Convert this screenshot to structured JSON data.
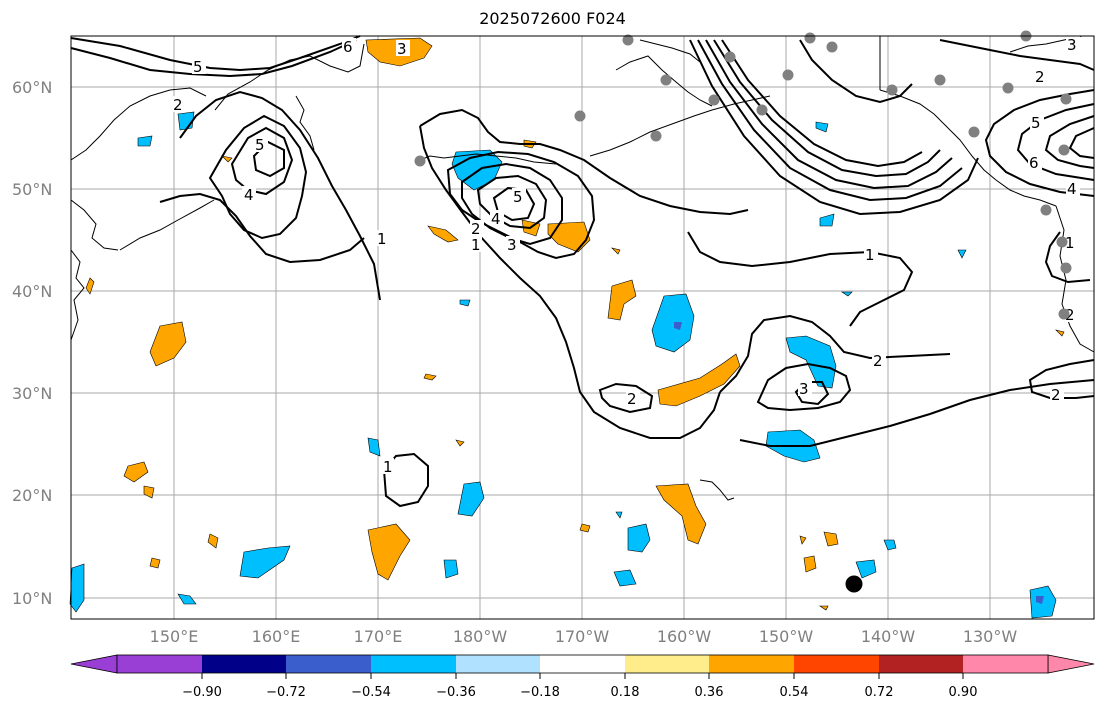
{
  "title": "2025072600 F024",
  "lat_labels": [
    "60°N",
    "50°N",
    "40°N",
    "30°N",
    "20°N",
    "10°N"
  ],
  "lon_labels": [
    "150°E",
    "160°E",
    "170°E",
    "180°W",
    "170°W",
    "160°W",
    "150°W",
    "140°W",
    "130°W"
  ],
  "colorbar": {
    "ticks": [
      "−0.90",
      "−0.72",
      "−0.54",
      "−0.36",
      "−0.18",
      "0.18",
      "0.36",
      "0.54",
      "0.72",
      "0.90"
    ],
    "colors": [
      "#9a3fd6",
      "#000088",
      "#3a5fcd",
      "#00bfff",
      "#b0e2ff",
      "#ffffff",
      "#ffec8b",
      "#ffa500",
      "#ff4500",
      "#b22222",
      "#ff88aa"
    ]
  },
  "contour_labels": [
    "5",
    "2",
    "4",
    "5",
    "1",
    "5",
    "4",
    "3",
    "2",
    "1",
    "1",
    "2",
    "3",
    "2",
    "1",
    "6",
    "3",
    "2",
    "5",
    "6",
    "4",
    "1",
    "2",
    "3",
    "2"
  ]
}
